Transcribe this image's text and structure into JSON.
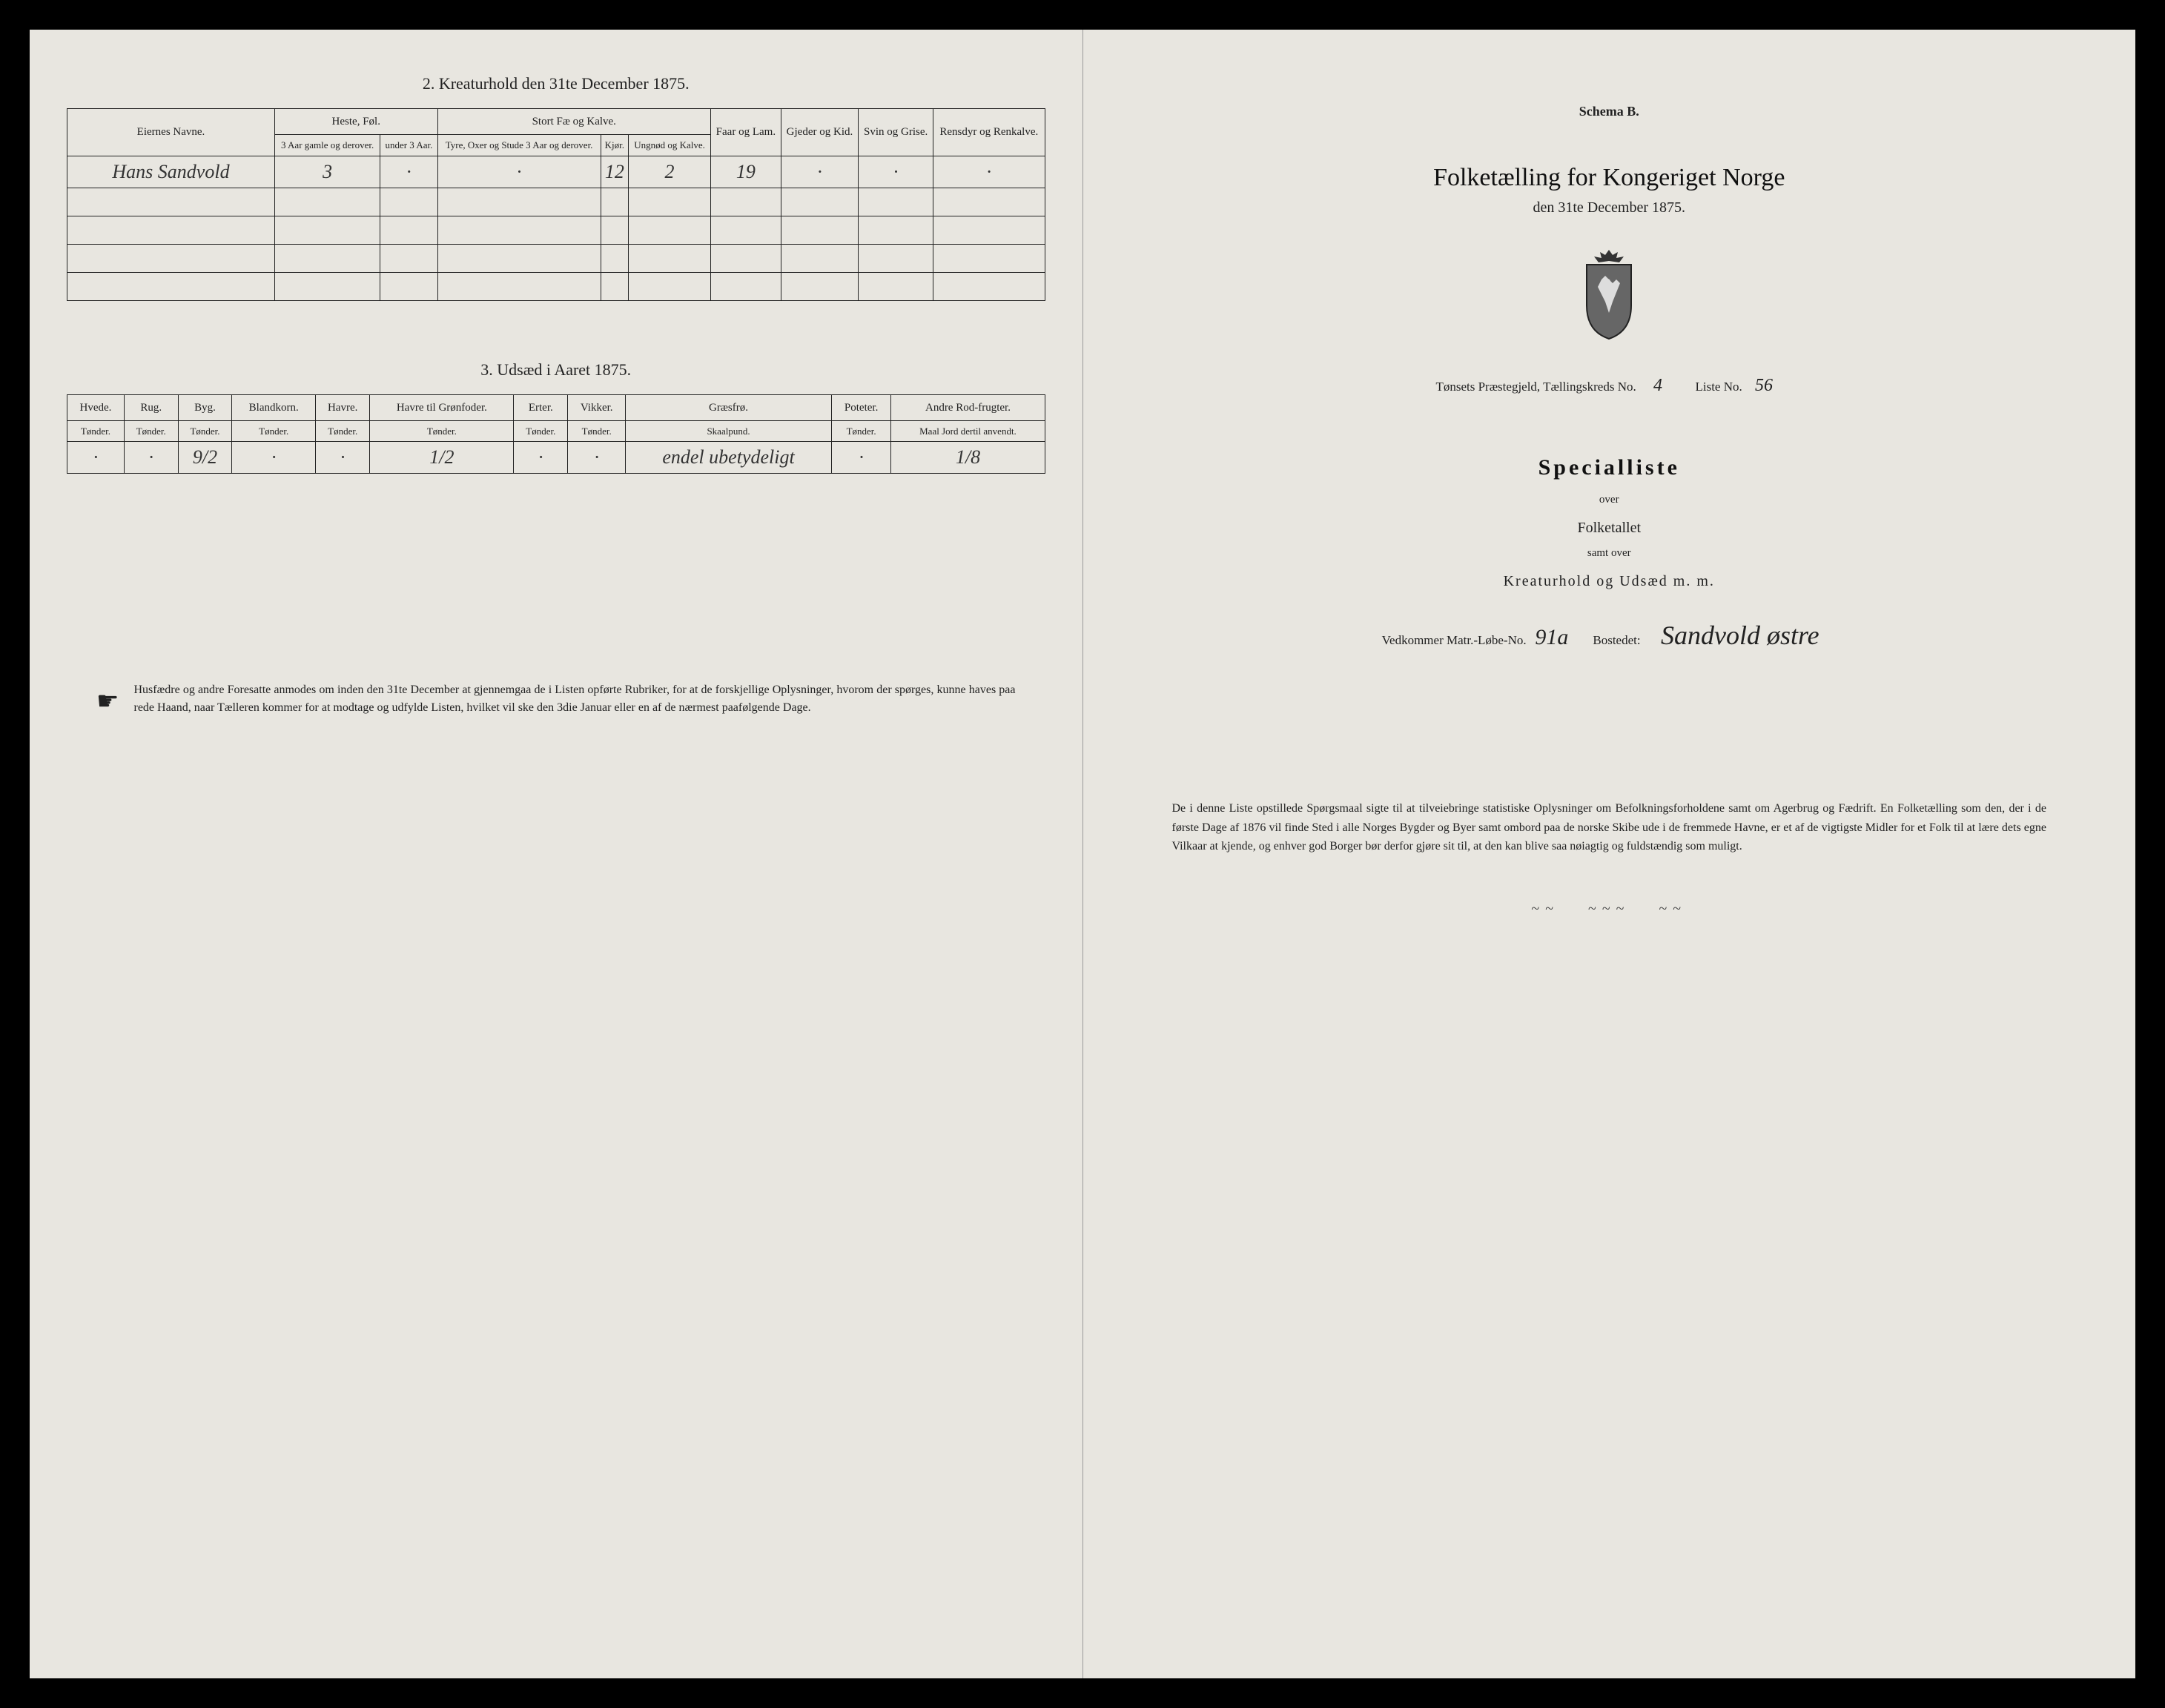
{
  "left": {
    "section2_title": "2. Kreaturhold den 31te December 1875.",
    "table2": {
      "col_name": "Eiernes Navne.",
      "group_heste": "Heste, Føl.",
      "group_stortfae": "Stort Fæ og Kalve.",
      "col_heste_a": "3 Aar gamle og derover.",
      "col_heste_b": "under 3 Aar.",
      "col_fae_a": "Tyre, Oxer og Stude 3 Aar og derover.",
      "col_fae_b": "Kjør.",
      "col_fae_c": "Ungnød og Kalve.",
      "col_faar": "Faar og Lam.",
      "col_gjeder": "Gjeder og Kid.",
      "col_svin": "Svin og Grise.",
      "col_rensdyr": "Rensdyr og Renkalve.",
      "row1": {
        "name": "Hans Sandvold",
        "heste_a": "3",
        "heste_b": "·",
        "fae_a": "·",
        "fae_b": "12",
        "fae_c": "2",
        "faar": "19",
        "gjeder": "·",
        "svin": "·",
        "rensdyr": "·"
      }
    },
    "section3_title": "3. Udsæd i Aaret 1875.",
    "table3": {
      "cols": [
        "Hvede.",
        "Rug.",
        "Byg.",
        "Blandkorn.",
        "Havre.",
        "Havre til Grønfoder.",
        "Erter.",
        "Vikker.",
        "Græsfrø.",
        "Poteter.",
        "Andre Rod-frugter."
      ],
      "units": [
        "Tønder.",
        "Tønder.",
        "Tønder.",
        "Tønder.",
        "Tønder.",
        "Tønder.",
        "Tønder.",
        "Tønder.",
        "Skaalpund.",
        "Tønder.",
        "Maal Jord dertil anvendt."
      ],
      "row1": [
        "·",
        "·",
        "9/2",
        "·",
        "·",
        "1/2",
        "·",
        "·",
        "endel ubetydeligt",
        "·",
        "1/8"
      ]
    },
    "footnote": "Husfædre og andre Foresatte anmodes om inden den 31te December at gjennemgaa de i Listen opførte Rubriker, for at de forskjellige Oplysninger, hvorom der spørges, kunne haves paa rede Haand, naar Tælleren kommer for at modtage og udfylde Listen, hvilket vil ske den 3die Januar eller en af de nærmest paafølgende Dage."
  },
  "right": {
    "schema": "Schema B.",
    "main_title": "Folketælling for Kongeriget Norge",
    "main_subtitle": "den 31te December 1875.",
    "district_prefix": "Tønsets Præstegjeld, Tællingskreds No.",
    "district_no": "4",
    "liste_label": "Liste No.",
    "liste_no": "56",
    "specialliste": "Specialliste",
    "over": "over",
    "folketallet": "Folketallet",
    "samt_over": "samt over",
    "kreatur": "Kreaturhold og Udsæd m. m.",
    "matr_label": "Vedkommer Matr.-Løbe-No.",
    "matr_no": "91a",
    "bostedet_label": "Bostedet:",
    "bostedet": "Sandvold østre",
    "paragraph": "De i denne Liste opstillede Spørgsmaal sigte til at tilveiebringe statistiske Oplysninger om Befolkningsforholdene samt om Agerbrug og Fædrift. En Folketælling som den, der i de første Dage af 1876 vil finde Sted i alle Norges Bygder og Byer samt ombord paa de norske Skibe ude i de fremmede Havne, er et af de vigtigste Midler for et Folk til at lære dets egne Vilkaar at kjende, og enhver god Borger bør derfor gjøre sit til, at den kan blive saa nøiagtig og fuldstændig som muligt."
  },
  "colors": {
    "paper": "#e8e6e0",
    "ink": "#222222",
    "frame": "#000000"
  }
}
